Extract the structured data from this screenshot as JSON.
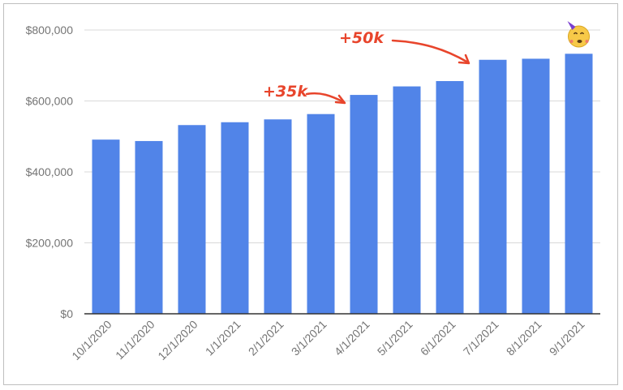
{
  "chart_data": {
    "type": "bar",
    "title": "",
    "xlabel": "",
    "ylabel": "",
    "categories": [
      "10/1/2020",
      "11/1/2020",
      "12/1/2020",
      "1/1/2021",
      "2/1/2021",
      "3/1/2021",
      "4/1/2021",
      "5/1/2021",
      "6/1/2021",
      "7/1/2021",
      "8/1/2021",
      "9/1/2021"
    ],
    "values": [
      491000,
      487000,
      532000,
      540000,
      548000,
      563000,
      617000,
      641000,
      656000,
      716000,
      719000,
      733000
    ],
    "ylim": [
      0,
      800000
    ],
    "yticks": [
      0,
      200000,
      400000,
      600000,
      800000
    ],
    "ytick_labels": [
      "$0",
      "$200,000",
      "$400,000",
      "$600,000",
      "$800,000"
    ],
    "grid": true,
    "bar_color": "#5184e8",
    "annotations": [
      {
        "text": "+35k",
        "color": "#e8452c"
      },
      {
        "text": "+50k",
        "color": "#e8452c"
      }
    ],
    "emoji": "🥳"
  }
}
